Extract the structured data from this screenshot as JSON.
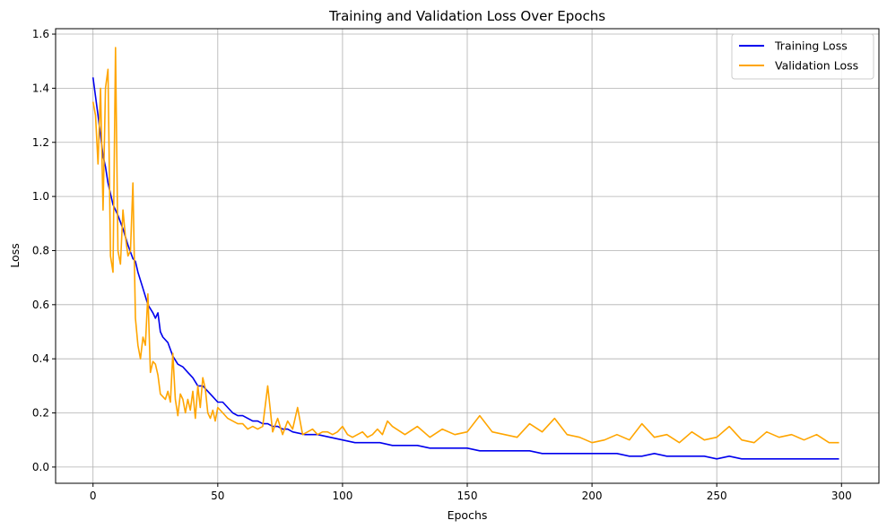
{
  "chart_data": {
    "type": "line",
    "title": "Training and Validation Loss Over Epochs",
    "xlabel": "Epochs",
    "ylabel": "Loss",
    "xlim": [
      -15,
      315
    ],
    "ylim": [
      -0.06,
      1.62
    ],
    "xticks": [
      0,
      50,
      100,
      150,
      200,
      250,
      300
    ],
    "yticks": [
      0.0,
      0.2,
      0.4,
      0.6,
      0.8,
      1.0,
      1.2,
      1.4,
      1.6
    ],
    "grid": true,
    "legend_position": "upper right",
    "series": [
      {
        "name": "Training Loss",
        "color": "#0000ee",
        "x": [
          0,
          2,
          4,
          5,
          6,
          8,
          10,
          12,
          14,
          16,
          17,
          18,
          20,
          22,
          24,
          25,
          26,
          27,
          28,
          30,
          32,
          34,
          36,
          38,
          40,
          42,
          44,
          46,
          48,
          50,
          52,
          54,
          56,
          58,
          60,
          62,
          64,
          66,
          68,
          70,
          72,
          74,
          76,
          78,
          80,
          85,
          90,
          95,
          100,
          105,
          110,
          115,
          120,
          125,
          130,
          135,
          140,
          145,
          150,
          155,
          160,
          165,
          170,
          175,
          180,
          185,
          190,
          195,
          200,
          205,
          210,
          215,
          220,
          225,
          230,
          235,
          240,
          245,
          250,
          255,
          260,
          265,
          270,
          275,
          280,
          285,
          290,
          295,
          299
        ],
        "y": [
          1.44,
          1.3,
          1.15,
          1.11,
          1.05,
          0.97,
          0.93,
          0.88,
          0.82,
          0.77,
          0.76,
          0.72,
          0.66,
          0.6,
          0.57,
          0.55,
          0.57,
          0.5,
          0.48,
          0.46,
          0.41,
          0.38,
          0.37,
          0.35,
          0.33,
          0.3,
          0.3,
          0.28,
          0.26,
          0.24,
          0.24,
          0.22,
          0.2,
          0.19,
          0.19,
          0.18,
          0.17,
          0.17,
          0.16,
          0.16,
          0.15,
          0.15,
          0.14,
          0.14,
          0.13,
          0.12,
          0.12,
          0.11,
          0.1,
          0.09,
          0.09,
          0.09,
          0.08,
          0.08,
          0.08,
          0.07,
          0.07,
          0.07,
          0.07,
          0.06,
          0.06,
          0.06,
          0.06,
          0.06,
          0.05,
          0.05,
          0.05,
          0.05,
          0.05,
          0.05,
          0.05,
          0.04,
          0.04,
          0.05,
          0.04,
          0.04,
          0.04,
          0.04,
          0.03,
          0.04,
          0.03,
          0.03,
          0.03,
          0.03,
          0.03,
          0.03,
          0.03,
          0.03,
          0.03
        ]
      },
      {
        "name": "Validation Loss",
        "color": "#ffa500",
        "x": [
          0,
          1,
          2,
          3,
          4,
          5,
          6,
          7,
          8,
          9,
          10,
          11,
          12,
          13,
          14,
          15,
          16,
          17,
          18,
          19,
          20,
          21,
          22,
          23,
          24,
          25,
          26,
          27,
          28,
          29,
          30,
          31,
          32,
          33,
          34,
          35,
          36,
          37,
          38,
          39,
          40,
          41,
          42,
          43,
          44,
          45,
          46,
          47,
          48,
          49,
          50,
          52,
          54,
          56,
          58,
          60,
          62,
          64,
          66,
          68,
          70,
          72,
          74,
          76,
          78,
          80,
          82,
          84,
          86,
          88,
          90,
          92,
          94,
          96,
          98,
          100,
          102,
          104,
          106,
          108,
          110,
          112,
          114,
          116,
          118,
          120,
          125,
          130,
          135,
          140,
          145,
          150,
          155,
          160,
          165,
          170,
          175,
          180,
          185,
          190,
          195,
          200,
          205,
          210,
          215,
          220,
          225,
          230,
          235,
          240,
          245,
          250,
          255,
          260,
          265,
          270,
          275,
          280,
          285,
          290,
          295,
          299
        ],
        "y": [
          1.35,
          1.3,
          1.12,
          1.4,
          0.95,
          1.4,
          1.47,
          0.78,
          0.72,
          1.55,
          0.8,
          0.75,
          0.95,
          0.85,
          0.78,
          0.8,
          1.05,
          0.55,
          0.45,
          0.4,
          0.48,
          0.45,
          0.64,
          0.35,
          0.39,
          0.38,
          0.34,
          0.27,
          0.26,
          0.25,
          0.28,
          0.24,
          0.42,
          0.25,
          0.19,
          0.27,
          0.25,
          0.2,
          0.25,
          0.21,
          0.28,
          0.18,
          0.3,
          0.22,
          0.33,
          0.29,
          0.2,
          0.18,
          0.21,
          0.17,
          0.22,
          0.2,
          0.18,
          0.17,
          0.16,
          0.16,
          0.14,
          0.15,
          0.14,
          0.15,
          0.3,
          0.13,
          0.18,
          0.12,
          0.17,
          0.14,
          0.22,
          0.12,
          0.13,
          0.14,
          0.12,
          0.13,
          0.13,
          0.12,
          0.13,
          0.15,
          0.12,
          0.11,
          0.12,
          0.13,
          0.11,
          0.12,
          0.14,
          0.12,
          0.17,
          0.15,
          0.12,
          0.15,
          0.11,
          0.14,
          0.12,
          0.13,
          0.19,
          0.13,
          0.12,
          0.11,
          0.16,
          0.13,
          0.18,
          0.12,
          0.11,
          0.09,
          0.1,
          0.12,
          0.1,
          0.16,
          0.11,
          0.12,
          0.09,
          0.13,
          0.1,
          0.11,
          0.15,
          0.1,
          0.09,
          0.13,
          0.11,
          0.12,
          0.1,
          0.12,
          0.09,
          0.09
        ]
      }
    ]
  }
}
